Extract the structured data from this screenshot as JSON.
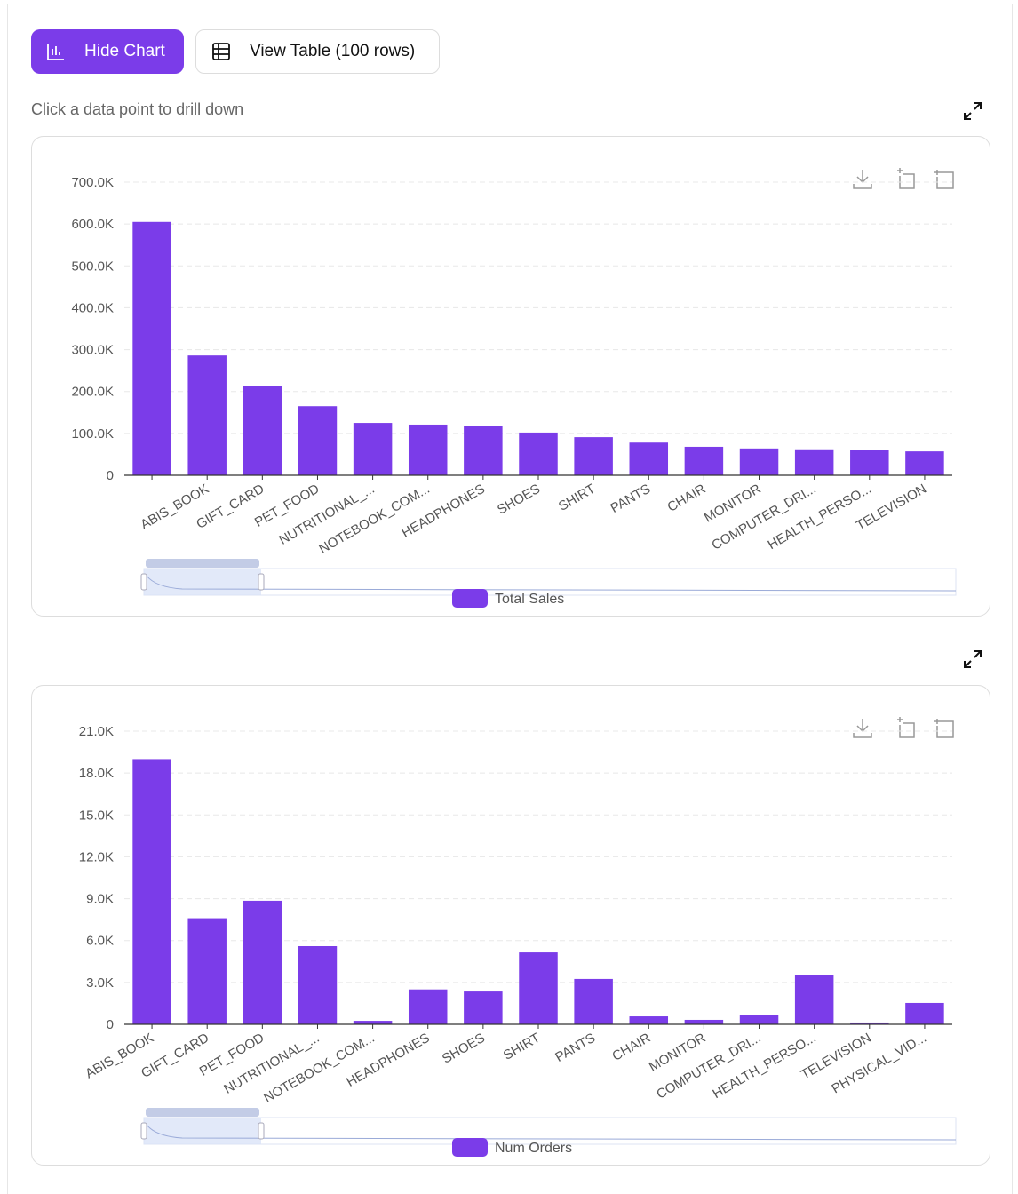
{
  "ui": {
    "hide_chart": "Hide Chart",
    "view_table": "View Table (100 rows)",
    "hint": "Click a data point to drill down"
  },
  "chart_data": [
    {
      "type": "bar",
      "categories": [
        null,
        "ABIS_BOOK",
        "GIFT_CARD",
        "PET_FOOD",
        "NUTRITIONAL_...",
        "NOTEBOOK_COM...",
        "HEADPHONES",
        "SHOES",
        "SHIRT",
        "PANTS",
        "CHAIR",
        "MONITOR",
        "COMPUTER_DRI...",
        "HEALTH_PERSO...",
        "TELEVISION"
      ],
      "series": [
        {
          "name": "Total Sales",
          "color": "#7b3ce9",
          "values": [
            605000,
            286000,
            214000,
            165000,
            125000,
            121000,
            117000,
            102000,
            91000,
            78000,
            68000,
            64000,
            62000,
            61000,
            57000
          ]
        }
      ],
      "ylim": [
        0,
        700000
      ],
      "yticks": [
        0,
        {
          "value": 100000,
          "label": "100.0K"
        },
        {
          "value": 200000,
          "label": "200.0K"
        },
        {
          "value": 300000,
          "label": "300.0K"
        },
        {
          "value": 400000,
          "label": "400.0K"
        },
        {
          "value": 500000,
          "label": "500.0K"
        },
        {
          "value": 600000,
          "label": "600.0K"
        },
        {
          "value": 700000,
          "label": "700.0K"
        }
      ],
      "grid": true
    },
    {
      "type": "bar",
      "categories": [
        "ABIS_BOOK",
        "GIFT_CARD",
        "PET_FOOD",
        "NUTRITIONAL_...",
        "NOTEBOOK_COM...",
        "HEADPHONES",
        "SHOES",
        "SHIRT",
        "PANTS",
        "CHAIR",
        "MONITOR",
        "COMPUTER_DRI...",
        "HEALTH_PERSO...",
        "TELEVISION",
        "PHYSICAL_VID..."
      ],
      "series": [
        {
          "name": "Num Orders",
          "color": "#7b3ce9",
          "values": [
            19000,
            7600,
            8850,
            5600,
            250,
            2500,
            2350,
            5150,
            3250,
            570,
            320,
            700,
            3500,
            130,
            1530
          ]
        }
      ],
      "ylim": [
        0,
        21000
      ],
      "yticks": [
        0,
        {
          "value": 3000,
          "label": "3.0K"
        },
        {
          "value": 6000,
          "label": "6.0K"
        },
        {
          "value": 9000,
          "label": "9.0K"
        },
        {
          "value": 12000,
          "label": "12.0K"
        },
        {
          "value": 15000,
          "label": "15.0K"
        },
        {
          "value": 18000,
          "label": "18.0K"
        },
        {
          "value": 21000,
          "label": "21.0K"
        }
      ],
      "grid": true
    }
  ]
}
